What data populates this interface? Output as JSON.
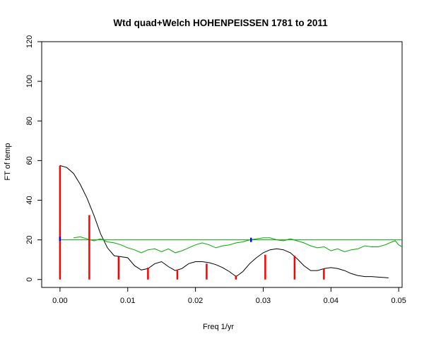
{
  "chart_data": {
    "type": "line",
    "title": "Wtd quad+Welch HOHENPEISSEN 1781 to 2011",
    "xlabel": "Freq 1/yr",
    "ylabel": "FT of temp",
    "xlim": [
      -0.0027,
      0.0505
    ],
    "ylim": [
      -4,
      120
    ],
    "xticks": [
      0.0,
      0.01,
      0.02,
      0.03,
      0.04,
      0.05
    ],
    "xtick_labels": [
      "0.00",
      "0.01",
      "0.02",
      "0.03",
      "0.04",
      "0.05"
    ],
    "yticks": [
      0,
      20,
      40,
      60,
      80,
      100,
      120
    ],
    "ytick_labels": [
      "0",
      "20",
      "40",
      "60",
      "80",
      "100",
      "120"
    ],
    "grid": false,
    "series": [
      {
        "color": "#000000",
        "points": [
          [
            0.0,
            57.5
          ],
          [
            0.001,
            56.5
          ],
          [
            0.002,
            53.5
          ],
          [
            0.003,
            48.0
          ],
          [
            0.004,
            41.0
          ],
          [
            0.005,
            32.5
          ],
          [
            0.006,
            23.0
          ],
          [
            0.007,
            16.0
          ],
          [
            0.008,
            12.0
          ],
          [
            0.009,
            11.5
          ],
          [
            0.01,
            11.0
          ],
          [
            0.011,
            7.0
          ],
          [
            0.012,
            4.8
          ],
          [
            0.013,
            5.5
          ],
          [
            0.014,
            8.0
          ],
          [
            0.015,
            9.0
          ],
          [
            0.016,
            6.5
          ],
          [
            0.017,
            4.5
          ],
          [
            0.018,
            5.5
          ],
          [
            0.019,
            8.0
          ],
          [
            0.02,
            9.0
          ],
          [
            0.021,
            9.0
          ],
          [
            0.022,
            8.5
          ],
          [
            0.023,
            7.5
          ],
          [
            0.024,
            6.0
          ],
          [
            0.025,
            4.0
          ],
          [
            0.026,
            1.5
          ],
          [
            0.027,
            4.0
          ],
          [
            0.028,
            8.0
          ],
          [
            0.029,
            11.0
          ],
          [
            0.03,
            13.5
          ],
          [
            0.031,
            15.0
          ],
          [
            0.032,
            15.5
          ],
          [
            0.033,
            15.0
          ],
          [
            0.034,
            13.5
          ],
          [
            0.035,
            10.5
          ],
          [
            0.036,
            7.0
          ],
          [
            0.037,
            4.5
          ],
          [
            0.038,
            4.5
          ],
          [
            0.039,
            5.5
          ],
          [
            0.04,
            6.0
          ],
          [
            0.041,
            5.5
          ],
          [
            0.042,
            4.5
          ],
          [
            0.043,
            3.0
          ],
          [
            0.044,
            2.0
          ],
          [
            0.045,
            1.5
          ],
          [
            0.046,
            1.5
          ],
          [
            0.047,
            1.2
          ],
          [
            0.048,
            1.0
          ],
          [
            0.0485,
            0.8
          ]
        ]
      },
      {
        "color": "#00aa00",
        "points": [
          [
            0.0,
            20.0
          ],
          [
            0.0505,
            20.0
          ]
        ]
      },
      {
        "color": "#00aa00",
        "points": [
          [
            0.002,
            21.0
          ],
          [
            0.003,
            21.5
          ],
          [
            0.004,
            20.5
          ],
          [
            0.005,
            19.5
          ],
          [
            0.006,
            20.5
          ],
          [
            0.007,
            19.0
          ],
          [
            0.008,
            18.5
          ],
          [
            0.009,
            17.5
          ],
          [
            0.01,
            16.0
          ],
          [
            0.011,
            15.0
          ],
          [
            0.012,
            13.5
          ],
          [
            0.013,
            15.0
          ],
          [
            0.014,
            15.5
          ],
          [
            0.015,
            14.0
          ],
          [
            0.016,
            15.5
          ],
          [
            0.017,
            13.5
          ],
          [
            0.018,
            14.5
          ],
          [
            0.019,
            16.0
          ],
          [
            0.02,
            17.5
          ],
          [
            0.021,
            18.5
          ],
          [
            0.022,
            17.5
          ],
          [
            0.023,
            16.0
          ],
          [
            0.024,
            17.0
          ],
          [
            0.025,
            17.5
          ],
          [
            0.026,
            18.5
          ],
          [
            0.027,
            19.0
          ],
          [
            0.028,
            20.0
          ],
          [
            0.029,
            20.5
          ],
          [
            0.03,
            21.0
          ],
          [
            0.031,
            21.0
          ],
          [
            0.032,
            20.0
          ],
          [
            0.033,
            19.5
          ],
          [
            0.034,
            20.5
          ],
          [
            0.035,
            19.5
          ],
          [
            0.036,
            18.5
          ],
          [
            0.037,
            17.0
          ],
          [
            0.038,
            16.0
          ],
          [
            0.039,
            16.5
          ],
          [
            0.04,
            14.5
          ],
          [
            0.041,
            15.5
          ],
          [
            0.042,
            14.0
          ],
          [
            0.043,
            15.0
          ],
          [
            0.044,
            15.5
          ],
          [
            0.045,
            17.0
          ],
          [
            0.046,
            16.5
          ],
          [
            0.047,
            16.5
          ],
          [
            0.048,
            17.5
          ],
          [
            0.049,
            19.0
          ],
          [
            0.0495,
            19.5
          ],
          [
            0.05,
            17.5
          ],
          [
            0.0505,
            16.5
          ]
        ]
      }
    ],
    "stems": {
      "color": "#ff0000",
      "x": [
        0.0,
        0.00433,
        0.00866,
        0.01299,
        0.01732,
        0.02165,
        0.02597,
        0.0303,
        0.03463,
        0.03896
      ],
      "y": [
        57.5,
        32.5,
        11.5,
        6.0,
        5.0,
        8.0,
        2.0,
        12.5,
        12.0,
        5.5
      ]
    },
    "markers": {
      "color": "#0000ff",
      "points": [
        [
          0.0,
          20.5
        ],
        [
          0.0282,
          20.0
        ]
      ]
    }
  }
}
